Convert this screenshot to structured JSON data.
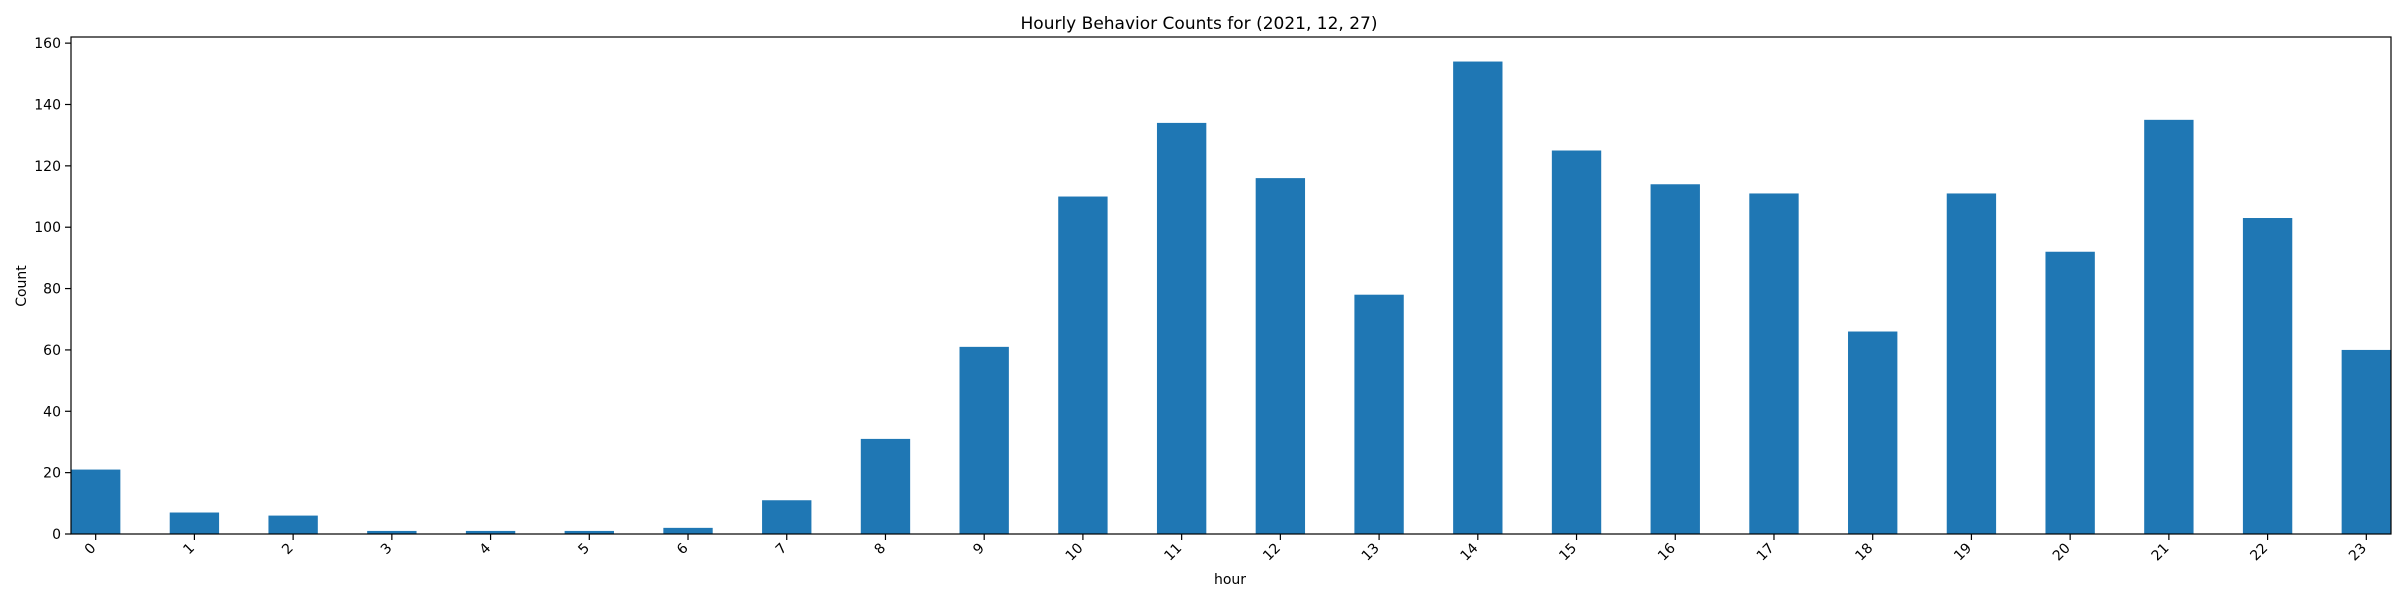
{
  "chart_data": {
    "type": "bar",
    "title": "Hourly Behavior Counts for (2021, 12, 27)",
    "xlabel": "hour",
    "ylabel": "Count",
    "categories": [
      "0",
      "1",
      "2",
      "3",
      "4",
      "5",
      "6",
      "7",
      "8",
      "9",
      "10",
      "11",
      "12",
      "13",
      "14",
      "15",
      "16",
      "17",
      "18",
      "19",
      "20",
      "21",
      "22",
      "23"
    ],
    "values": [
      21,
      7,
      6,
      1,
      1,
      1,
      2,
      11,
      31,
      61,
      110,
      134,
      116,
      78,
      154,
      125,
      114,
      111,
      66,
      111,
      92,
      135,
      103,
      60
    ],
    "ylim": [
      0,
      162
    ],
    "yticks": [
      0,
      20,
      40,
      60,
      80,
      100,
      120,
      140,
      160
    ],
    "bar_color": "#1f77b4",
    "grid": false,
    "legend": "none"
  }
}
